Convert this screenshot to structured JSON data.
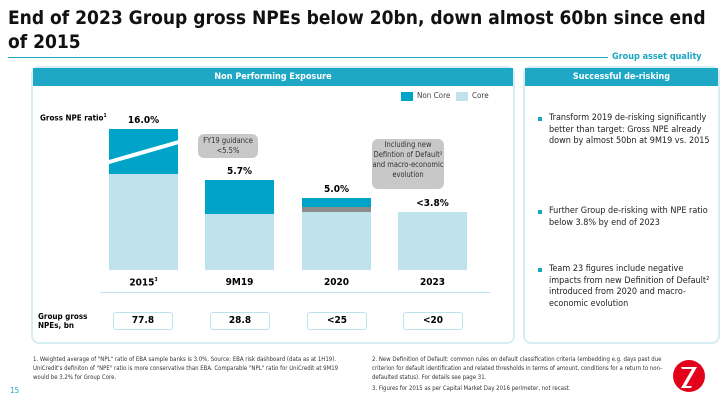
{
  "title": "End of 2023 Group gross NPEs below 20bn, down almost 60bn since end of 2015",
  "section": "Group asset quality",
  "left_panel": {
    "header": "Non Performing Exposure",
    "ratio_label": "Gross NPE ratio",
    "ratio_sup": "1",
    "npe_label": "Group gross NPEs, bn"
  },
  "right_panel": {
    "header": "Successful de-risking",
    "bullets": [
      "Transform 2019 de-risking significantly better than target: Gross NPE already down by almost 50bn at 9M19 vs. 2015",
      "Further Group de-risking with NPE ratio below 3.8% by end of 2023",
      "Team 23 figures include negative impacts from new Definition of Default² introduced from 2020 and macro-economic evolution"
    ]
  },
  "callouts": {
    "fy19": "FY19 guidance <5.5%",
    "ndod": "Including new Defintion of Default² and macro-economic evolution"
  },
  "chart_data": {
    "type": "bar",
    "stacked": true,
    "legend": [
      "Non Core",
      "Core"
    ],
    "categories": [
      "2015",
      "9M19",
      "2020",
      "2023"
    ],
    "category_sup": [
      "3",
      "",
      "",
      ""
    ],
    "ratio_labels": [
      "16.0%",
      "5.7%",
      "5.0%",
      "<3.8%"
    ],
    "npe_values": [
      "77.8",
      "28.8",
      "<25",
      "<20"
    ],
    "colors": {
      "non_core": "#00a4c8",
      "core": "#bfe2ec",
      "ndod": "#8c8c8c"
    }
  },
  "footnotes": [
    "1. Weighted average of \"NPL\" ratio of EBA sample banks is 3.0%. Source: EBA risk dashboard (data as at 1H19). UniCredit's definiton of \"NPE\" ratio is more conservative than EBA. Comparable \"NPL\" ratio for UniCredit at 9M19 would be 3.2% for Group Core.",
    "2. New Definition of Default: common rules on default classification criteria (embedding e.g. days past due criterion for default identification and related thresholds in terms of amount, conditions for a return to non-defaulted status). For details see page 31.",
    "3. Figures for 2015 as per Capital Market Day 2016 perimeter, not recast."
  ],
  "page_number": "15"
}
